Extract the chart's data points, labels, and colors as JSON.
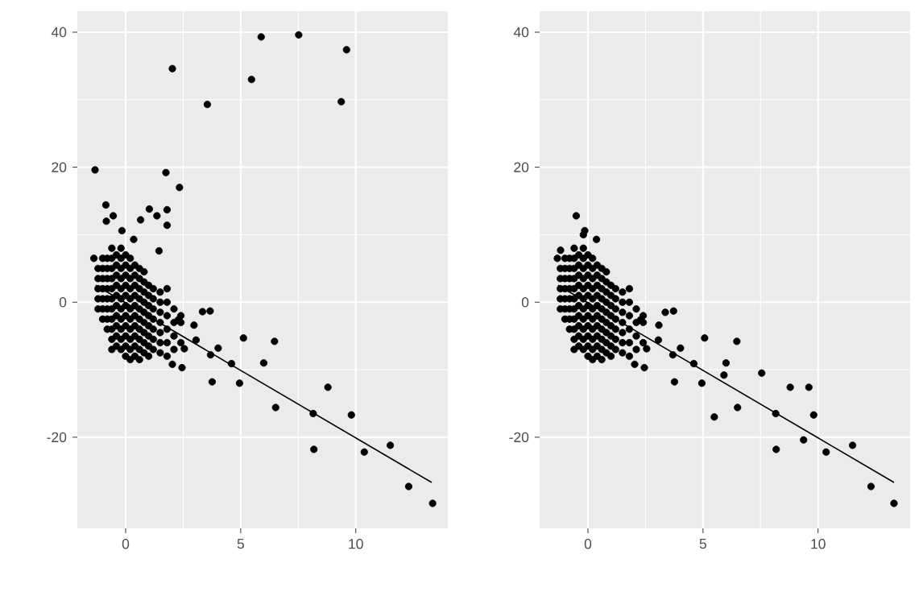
{
  "chart_data": [
    {
      "type": "scatter",
      "xlim": [
        -2.1,
        14.0
      ],
      "ylim": [
        -33.5,
        43.1
      ],
      "xticks": [
        0,
        5,
        10
      ],
      "yticks": [
        -20,
        0,
        20,
        40
      ],
      "grid": true,
      "marker": "circle",
      "series": [
        {
          "type": "scatter",
          "color": "#000000",
          "x": [
            -1.2,
            -1.2,
            -1.2,
            -1.2,
            -1.2,
            -1.0,
            -1.0,
            -1.0,
            -1.0,
            -1.0,
            -1.0,
            -1.0,
            -0.8,
            -0.8,
            -0.8,
            -0.8,
            -0.8,
            -0.8,
            -0.8,
            -0.8,
            -0.6,
            -0.6,
            -0.6,
            -0.6,
            -0.6,
            -0.6,
            -0.6,
            -0.6,
            -0.6,
            -0.6,
            -0.6,
            -0.4,
            -0.4,
            -0.4,
            -0.4,
            -0.4,
            -0.4,
            -0.4,
            -0.4,
            -0.4,
            -0.4,
            -0.2,
            -0.2,
            -0.2,
            -0.2,
            -0.2,
            -0.2,
            -0.2,
            -0.2,
            -0.2,
            -0.2,
            -0.2,
            0,
            0,
            0,
            0,
            0,
            0,
            0,
            0,
            0,
            0,
            0,
            0.2,
            0.2,
            0.2,
            0.2,
            0.2,
            0.2,
            0.2,
            0.2,
            0.2,
            0.2,
            0.2,
            0.4,
            0.4,
            0.4,
            0.4,
            0.4,
            0.4,
            0.4,
            0.4,
            0.4,
            0.4,
            0.6,
            0.6,
            0.6,
            0.6,
            0.6,
            0.6,
            0.6,
            0.6,
            0.6,
            0.6,
            0.8,
            0.8,
            0.8,
            0.8,
            0.8,
            0.8,
            0.8,
            0.8,
            0.8,
            1.0,
            1.0,
            1.0,
            1.0,
            1.0,
            1.0,
            1.0,
            1.0,
            1.2,
            1.2,
            1.2,
            1.2,
            1.2,
            1.2,
            1.2,
            1.5,
            1.5,
            1.5,
            1.5,
            1.5,
            1.5,
            1.5,
            1.8,
            1.8,
            1.8,
            1.8,
            1.8,
            1.8,
            2.1,
            2.1,
            2.1,
            2.1,
            2.4,
            2.4,
            2.4,
            -1.33,
            2.03,
            3.55,
            5.47,
            5.89,
            7.52,
            9.6,
            9.37,
            1.75,
            2.34,
            -0.86,
            -1.38,
            0.65,
            1.03,
            1.36,
            1.8,
            1.8,
            -0.16,
            -0.54,
            -0.84,
            0.35,
            1.45,
            2.29,
            3.67,
            3.34,
            2.97,
            3.06,
            2.55,
            2.45,
            2.03,
            4.02,
            3.69,
            3.76,
            4.6,
            4.95,
            5.12,
            6.0,
            6.47,
            6.52,
            8.15,
            8.18,
            8.79,
            9.81,
            10.37,
            11.5,
            12.3,
            13.34
          ],
          "values": [
            -1,
            0.5,
            2,
            3.5,
            5,
            -2.5,
            -1,
            0.5,
            2,
            3.5,
            5,
            6.5,
            -4,
            -2.5,
            -1,
            0.5,
            2,
            3.5,
            5,
            6.5,
            -7,
            -5.5,
            -4,
            -2.5,
            -1,
            0.5,
            2,
            3.5,
            5,
            6.5,
            8,
            -6.5,
            -5,
            -3.5,
            -2,
            -0.5,
            1,
            2.5,
            4,
            5.5,
            7,
            -7,
            -5.5,
            -4,
            -2.5,
            -1,
            0.5,
            2,
            3.5,
            5,
            6.5,
            8,
            -8,
            -6.5,
            -5,
            -3.5,
            -2,
            -0.5,
            1,
            2.5,
            4,
            5.5,
            7,
            -8.5,
            -7,
            -5.5,
            -4,
            -2.5,
            -1,
            0.5,
            2,
            3.5,
            5,
            6.5,
            -8,
            -6.5,
            -5,
            -3.5,
            -2,
            -0.5,
            1,
            2.5,
            4,
            5.5,
            -8.5,
            -7,
            -5.5,
            -4,
            -2.5,
            -1,
            0.5,
            2,
            3.5,
            5,
            -7.5,
            -6,
            -4.5,
            -3,
            -1.5,
            0,
            1.5,
            3,
            4.5,
            -8,
            -6.5,
            -5,
            -3.5,
            -2,
            -0.5,
            1,
            2.5,
            -7,
            -5.5,
            -4,
            -2.5,
            -1,
            0.5,
            2,
            -7.5,
            -6,
            -4.5,
            -3,
            -1.5,
            0,
            1.5,
            -8,
            -6,
            -4,
            -2,
            0,
            2,
            -7,
            -5,
            -3,
            -1,
            -6,
            -3,
            -2,
            19.6,
            34.6,
            29.3,
            33.0,
            39.3,
            39.6,
            37.4,
            29.7,
            19.2,
            17.0,
            14.4,
            6.5,
            12.2,
            13.8,
            12.8,
            13.7,
            11.4,
            10.6,
            12.8,
            12.0,
            9.3,
            7.6,
            -2.6,
            -1.3,
            -1.4,
            -3.4,
            -5.6,
            -6.9,
            -9.7,
            -9.2,
            -6.8,
            -7.8,
            -11.8,
            -9.1,
            -12.0,
            -5.3,
            -9.0,
            -5.8,
            -15.6,
            -16.5,
            -21.8,
            -12.6,
            -16.7,
            -22.2,
            -21.2,
            -27.3,
            -29.8
          ]
        },
        {
          "type": "line",
          "color": "#000000",
          "marker": "none",
          "x": [
            -1.3,
            13.3
          ],
          "values": [
            2.5,
            -26.7
          ]
        }
      ]
    },
    {
      "type": "scatter",
      "xlim": [
        -2.1,
        14.0
      ],
      "ylim": [
        -33.5,
        43.1
      ],
      "xticks": [
        0,
        5,
        10
      ],
      "yticks": [
        -20,
        0,
        20,
        40
      ],
      "grid": true,
      "marker": "circle",
      "series": [
        {
          "type": "scatter",
          "color": "#000000",
          "x": [
            -1.2,
            -1.2,
            -1.2,
            -1.2,
            -1.2,
            -1.0,
            -1.0,
            -1.0,
            -1.0,
            -1.0,
            -1.0,
            -1.0,
            -0.8,
            -0.8,
            -0.8,
            -0.8,
            -0.8,
            -0.8,
            -0.8,
            -0.8,
            -0.6,
            -0.6,
            -0.6,
            -0.6,
            -0.6,
            -0.6,
            -0.6,
            -0.6,
            -0.6,
            -0.6,
            -0.6,
            -0.4,
            -0.4,
            -0.4,
            -0.4,
            -0.4,
            -0.4,
            -0.4,
            -0.4,
            -0.4,
            -0.4,
            -0.2,
            -0.2,
            -0.2,
            -0.2,
            -0.2,
            -0.2,
            -0.2,
            -0.2,
            -0.2,
            -0.2,
            -0.2,
            0,
            0,
            0,
            0,
            0,
            0,
            0,
            0,
            0,
            0,
            0,
            0.2,
            0.2,
            0.2,
            0.2,
            0.2,
            0.2,
            0.2,
            0.2,
            0.2,
            0.2,
            0.2,
            0.4,
            0.4,
            0.4,
            0.4,
            0.4,
            0.4,
            0.4,
            0.4,
            0.4,
            0.4,
            0.6,
            0.6,
            0.6,
            0.6,
            0.6,
            0.6,
            0.6,
            0.6,
            0.6,
            0.6,
            0.8,
            0.8,
            0.8,
            0.8,
            0.8,
            0.8,
            0.8,
            0.8,
            0.8,
            1.0,
            1.0,
            1.0,
            1.0,
            1.0,
            1.0,
            1.0,
            1.0,
            1.2,
            1.2,
            1.2,
            1.2,
            1.2,
            1.2,
            1.2,
            1.5,
            1.5,
            1.5,
            1.5,
            1.5,
            1.5,
            1.5,
            1.8,
            1.8,
            1.8,
            1.8,
            1.8,
            1.8,
            2.1,
            2.1,
            2.1,
            2.1,
            2.4,
            2.4,
            2.4,
            -1.33,
            -1.19,
            -0.51,
            -0.14,
            0.37,
            -0.2,
            2.29,
            3.72,
            3.36,
            3.08,
            3.06,
            2.55,
            2.45,
            2.03,
            4.02,
            3.69,
            3.76,
            4.6,
            4.95,
            5.07,
            6.0,
            5.91,
            7.55,
            6.47,
            6.5,
            5.49,
            8.16,
            8.18,
            8.79,
            9.6,
            9.81,
            9.37,
            10.35,
            11.5,
            12.3,
            13.3
          ],
          "values": [
            -1,
            0.5,
            2,
            3.5,
            5,
            -2.5,
            -1,
            0.5,
            2,
            3.5,
            5,
            6.5,
            -4,
            -2.5,
            -1,
            0.5,
            2,
            3.5,
            5,
            6.5,
            -7,
            -5.5,
            -4,
            -2.5,
            -1,
            0.5,
            2,
            3.5,
            5,
            6.5,
            8,
            -6.5,
            -5,
            -3.5,
            -2,
            -0.5,
            1,
            2.5,
            4,
            5.5,
            7,
            -7,
            -5.5,
            -4,
            -2.5,
            -1,
            0.5,
            2,
            3.5,
            5,
            6.5,
            8,
            -8,
            -6.5,
            -5,
            -3.5,
            -2,
            -0.5,
            1,
            2.5,
            4,
            5.5,
            7,
            -8.5,
            -7,
            -5.5,
            -4,
            -2.5,
            -1,
            0.5,
            2,
            3.5,
            5,
            6.5,
            -8,
            -6.5,
            -5,
            -3.5,
            -2,
            -0.5,
            1,
            2.5,
            4,
            5.5,
            -8.5,
            -7,
            -5.5,
            -4,
            -2.5,
            -1,
            0.5,
            2,
            3.5,
            5,
            -7.5,
            -6,
            -4.5,
            -3,
            -1.5,
            0,
            1.5,
            3,
            4.5,
            -8,
            -6.5,
            -5,
            -3.5,
            -2,
            -0.5,
            1,
            2.5,
            -7,
            -5.5,
            -4,
            -2.5,
            -1,
            0.5,
            2,
            -7.5,
            -6,
            -4.5,
            -3,
            -1.5,
            0,
            1.5,
            -8,
            -6,
            -4,
            -2,
            0,
            2,
            -7,
            -5,
            -3,
            -1,
            -6,
            -3,
            -2,
            6.5,
            7.7,
            12.8,
            10.6,
            9.3,
            10.0,
            -2.6,
            -1.3,
            -1.5,
            -3.4,
            -5.6,
            -6.9,
            -9.7,
            -9.2,
            -6.8,
            -7.8,
            -11.8,
            -9.1,
            -12.0,
            -5.3,
            -9.0,
            -10.8,
            -10.5,
            -5.8,
            -15.6,
            -17.0,
            -16.5,
            -21.8,
            -12.6,
            -12.6,
            -16.7,
            -20.4,
            -22.2,
            -21.2,
            -27.3,
            -29.8
          ]
        },
        {
          "type": "line",
          "color": "#000000",
          "marker": "none",
          "x": [
            -1.3,
            13.3
          ],
          "values": [
            2.5,
            -26.7
          ]
        }
      ]
    }
  ]
}
